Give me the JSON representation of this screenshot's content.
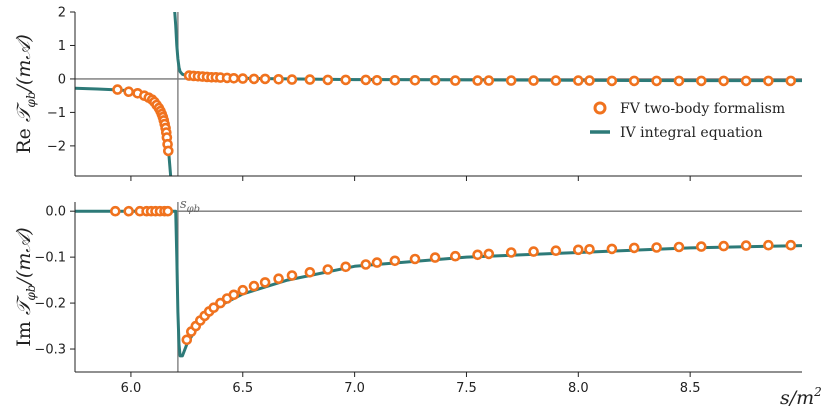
{
  "colors": {
    "fv": "#f0721e",
    "iv": "#2d7a78",
    "ref": "#777777",
    "axis": "#222222"
  },
  "chart_data": [
    {
      "type": "line",
      "panel": "top",
      "ylabel": "Re 𝒯φb/(m𝒜)",
      "xlabel": "",
      "xlim": [
        5.75,
        9.0
      ],
      "ylim": [
        -2.9,
        2.0
      ],
      "yticks": [
        2,
        1,
        0,
        -1,
        -2
      ],
      "ytick_labels": [
        "2",
        "1",
        "0",
        "−1",
        "−2"
      ],
      "xticks": [
        6.0,
        6.5,
        7.0,
        7.5,
        8.0,
        8.5
      ],
      "hline": 0,
      "vline": 6.21,
      "legend": {
        "position": "right",
        "entries": [
          "FV two-body formalism",
          "IV integral equation"
        ]
      },
      "series": [
        {
          "name": "IV integral equation",
          "style": "line",
          "x": [
            5.75,
            5.85,
            5.95,
            6.0,
            6.05,
            6.08,
            6.1,
            6.12,
            6.14,
            6.15,
            6.16,
            6.165,
            6.17,
            6.175,
            6.18
          ],
          "y": [
            -0.28,
            -0.3,
            -0.33,
            -0.36,
            -0.42,
            -0.5,
            -0.58,
            -0.72,
            -0.95,
            -1.15,
            -1.55,
            -1.9,
            -2.3,
            -2.7,
            -3.1
          ]
        },
        {
          "name": "IV integral equation (above threshold)",
          "style": "line",
          "x": [
            6.195,
            6.2,
            6.205,
            6.21,
            6.215,
            6.22,
            6.23,
            6.25,
            6.3,
            6.4,
            6.5,
            6.7,
            7.0,
            7.5,
            8.0,
            8.5,
            9.0
          ],
          "y": [
            2.1,
            1.6,
            1.0,
            0.6,
            0.35,
            0.22,
            0.14,
            0.1,
            0.07,
            0.04,
            0.02,
            0.0,
            -0.02,
            -0.03,
            -0.04,
            -0.05,
            -0.05
          ]
        },
        {
          "name": "FV two-body formalism",
          "style": "markers",
          "x": [
            5.94,
            5.99,
            6.03,
            6.06,
            6.08,
            6.095,
            6.105,
            6.115,
            6.125,
            6.132,
            6.138,
            6.143,
            6.147,
            6.151,
            6.155,
            6.158,
            6.161,
            6.164,
            6.167,
            6.26,
            6.28,
            6.3,
            6.32,
            6.34,
            6.36,
            6.38,
            6.4,
            6.43,
            6.46,
            6.5,
            6.55,
            6.6,
            6.66,
            6.72,
            6.8,
            6.88,
            6.96,
            7.05,
            7.1,
            7.18,
            7.27,
            7.36,
            7.45,
            7.55,
            7.6,
            7.7,
            7.8,
            7.9,
            8.0,
            8.05,
            8.15,
            8.25,
            8.35,
            8.45,
            8.55,
            8.65,
            8.75,
            8.85,
            8.95
          ],
          "y": [
            -0.32,
            -0.38,
            -0.43,
            -0.5,
            -0.56,
            -0.62,
            -0.69,
            -0.78,
            -0.87,
            -0.96,
            -1.05,
            -1.14,
            -1.24,
            -1.35,
            -1.47,
            -1.6,
            -1.75,
            -1.95,
            -2.15,
            0.1,
            0.09,
            0.08,
            0.07,
            0.06,
            0.05,
            0.05,
            0.04,
            0.03,
            0.02,
            0.01,
            0.0,
            0.0,
            -0.01,
            -0.02,
            -0.02,
            -0.03,
            -0.03,
            -0.03,
            -0.04,
            -0.04,
            -0.04,
            -0.04,
            -0.05,
            -0.05,
            -0.05,
            -0.05,
            -0.05,
            -0.05,
            -0.05,
            -0.05,
            -0.06,
            -0.06,
            -0.06,
            -0.06,
            -0.06,
            -0.06,
            -0.06,
            -0.06,
            -0.06
          ]
        }
      ]
    },
    {
      "type": "line",
      "panel": "bottom",
      "ylabel": "Im 𝒯φb/(m𝒜)",
      "xlabel": "s/m²",
      "xlim": [
        5.75,
        9.0
      ],
      "ylim": [
        -0.35,
        0.02
      ],
      "yticks": [
        0.0,
        -0.1,
        -0.2,
        -0.3
      ],
      "ytick_labels": [
        "0.0",
        "−0.1",
        "−0.2",
        "−0.3"
      ],
      "xticks": [
        6.0,
        6.5,
        7.0,
        7.5,
        8.0,
        8.5
      ],
      "xtick_labels": [
        "6.0",
        "6.5",
        "7.0",
        "7.5",
        "8.0",
        "8.5"
      ],
      "hline": 0,
      "vline": 6.21,
      "annotation": "sφb",
      "series": [
        {
          "name": "IV integral equation",
          "style": "line",
          "x": [
            5.75,
            6.0,
            6.2,
            6.205,
            6.21,
            6.215,
            6.22,
            6.23,
            6.25,
            6.28,
            6.32,
            6.4,
            6.5,
            6.7,
            7.0,
            7.5,
            8.0,
            8.5,
            9.0
          ],
          "y": [
            0.0,
            0.0,
            0.0,
            -0.1,
            -0.22,
            -0.29,
            -0.315,
            -0.315,
            -0.29,
            -0.265,
            -0.24,
            -0.205,
            -0.18,
            -0.15,
            -0.12,
            -0.1,
            -0.09,
            -0.08,
            -0.075
          ]
        },
        {
          "name": "FV two-body formalism",
          "style": "markers",
          "x": [
            5.93,
            5.99,
            6.04,
            6.07,
            6.09,
            6.11,
            6.13,
            6.15,
            6.165,
            6.25,
            6.27,
            6.29,
            6.31,
            6.33,
            6.35,
            6.37,
            6.4,
            6.43,
            6.46,
            6.5,
            6.55,
            6.6,
            6.66,
            6.72,
            6.8,
            6.88,
            6.96,
            7.05,
            7.1,
            7.18,
            7.27,
            7.36,
            7.45,
            7.55,
            7.6,
            7.7,
            7.8,
            7.9,
            8.0,
            8.05,
            8.15,
            8.25,
            8.35,
            8.45,
            8.55,
            8.65,
            8.75,
            8.85,
            8.95
          ],
          "y": [
            0.0,
            0.0,
            0.0,
            0.0,
            0.0,
            0.0,
            0.0,
            0.0,
            0.0,
            -0.28,
            -0.262,
            -0.25,
            -0.238,
            -0.228,
            -0.218,
            -0.21,
            -0.2,
            -0.19,
            -0.182,
            -0.172,
            -0.163,
            -0.155,
            -0.147,
            -0.14,
            -0.133,
            -0.127,
            -0.121,
            -0.116,
            -0.112,
            -0.108,
            -0.104,
            -0.101,
            -0.098,
            -0.095,
            -0.093,
            -0.09,
            -0.088,
            -0.086,
            -0.084,
            -0.083,
            -0.082,
            -0.08,
            -0.079,
            -0.078,
            -0.077,
            -0.076,
            -0.075,
            -0.074,
            -0.074
          ]
        }
      ]
    }
  ]
}
